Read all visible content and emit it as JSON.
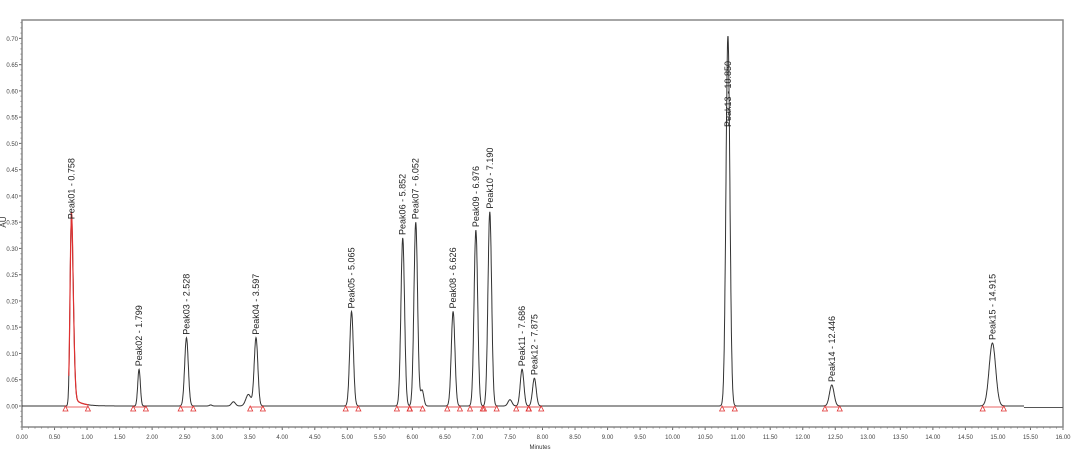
{
  "chart_data": {
    "type": "line",
    "title": "",
    "xlabel": "Minutes",
    "ylabel": "AU",
    "xlim": [
      0,
      16
    ],
    "ylim": [
      -0.04,
      0.735
    ],
    "x_ticks": [
      "0.00",
      "0.50",
      "1.00",
      "1.50",
      "2.00",
      "2.50",
      "3.00",
      "3.50",
      "4.00",
      "4.50",
      "5.00",
      "5.50",
      "6.00",
      "6.50",
      "7.00",
      "7.50",
      "8.00",
      "8.50",
      "9.00",
      "9.50",
      "10.00",
      "10.50",
      "11.00",
      "11.50",
      "12.00",
      "12.50",
      "13.00",
      "13.50",
      "14.00",
      "14.50",
      "15.00",
      "15.50",
      "16.00"
    ],
    "y_ticks": [
      "0.00",
      "0.05",
      "0.10",
      "0.15",
      "0.20",
      "0.25",
      "0.30",
      "0.35",
      "0.40",
      "0.45",
      "0.50",
      "0.55",
      "0.60",
      "0.65",
      "0.70"
    ],
    "grid": false,
    "colors": {
      "trace": "#333333",
      "integrated_peak": "#e03030",
      "markers": "#e03030"
    },
    "peaks": [
      {
        "label": "Peak01 - 0.758",
        "rt": 0.758,
        "height": 0.35
      },
      {
        "label": "Peak02 - 1.799",
        "rt": 1.799,
        "height": 0.07
      },
      {
        "label": "Peak03 - 2.528",
        "rt": 2.528,
        "height": 0.13
      },
      {
        "label": "Peak04 - 3.597",
        "rt": 3.597,
        "height": 0.13
      },
      {
        "label": "Peak05 - 5.065",
        "rt": 5.065,
        "height": 0.18
      },
      {
        "label": "Peak06 - 5.852",
        "rt": 5.852,
        "height": 0.32
      },
      {
        "label": "Peak07 - 6.052",
        "rt": 6.052,
        "height": 0.35
      },
      {
        "label": "Peak08 - 6.626",
        "rt": 6.626,
        "height": 0.18
      },
      {
        "label": "Peak09 - 6.976",
        "rt": 6.976,
        "height": 0.335
      },
      {
        "label": "Peak10 - 7.190",
        "rt": 7.19,
        "height": 0.37
      },
      {
        "label": "Peak11 - 7.686",
        "rt": 7.686,
        "height": 0.07
      },
      {
        "label": "Peak12 - 7.875",
        "rt": 7.875,
        "height": 0.053
      },
      {
        "label": "Peak13 - 10.850",
        "rt": 10.85,
        "height": 0.705
      },
      {
        "label": "Peak14 - 12.446",
        "rt": 12.446,
        "height": 0.04
      },
      {
        "label": "Peak15 - 14.915",
        "rt": 14.915,
        "height": 0.12
      }
    ]
  }
}
